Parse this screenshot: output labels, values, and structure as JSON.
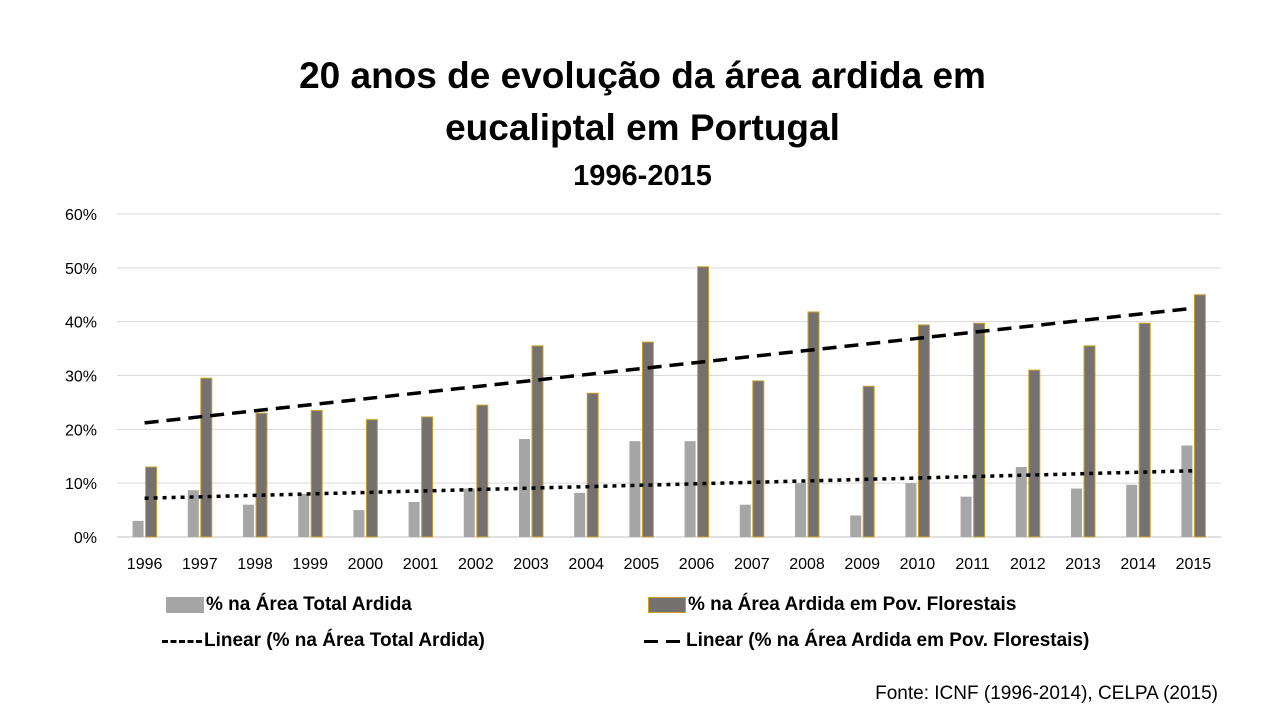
{
  "chart_data": {
    "type": "bar",
    "title": "20 anos de evolução da área ardida em eucaliptal em Portugal",
    "title_lines": [
      "20 anos de evolução da área ardida em",
      "eucaliptal em Portugal"
    ],
    "subtitle": "1996-2015",
    "categories": [
      "1996",
      "1997",
      "1998",
      "1999",
      "2000",
      "2001",
      "2002",
      "2003",
      "2004",
      "2005",
      "2006",
      "2007",
      "2008",
      "2009",
      "2010",
      "2011",
      "2012",
      "2013",
      "2014",
      "2015"
    ],
    "series": [
      {
        "name": "% na Área Total Ardida",
        "color": "#a6a6a6",
        "values": [
          3,
          8.7,
          6,
          8,
          5,
          6.5,
          9,
          18.2,
          8.2,
          17.8,
          17.8,
          6,
          10,
          4,
          10,
          7.5,
          13,
          9,
          9.7,
          17
        ]
      },
      {
        "name": "% na Área Ardida em Pov. Florestais",
        "color": "#767171",
        "border": "#c9a227",
        "values": [
          13,
          29.5,
          23,
          23.5,
          21.8,
          22.3,
          24.5,
          35.5,
          26.7,
          36.2,
          50.2,
          29,
          41.8,
          28,
          39.4,
          39.7,
          31,
          35.5,
          39.7,
          45
        ]
      }
    ],
    "trendlines": [
      {
        "name": "Linear (% na Área Total Ardida)",
        "style": "dotted",
        "start": 7.2,
        "end": 12.3
      },
      {
        "name": "Linear (% na Área Ardida em Pov. Florestais)",
        "style": "dashed",
        "start": 21.2,
        "end": 42.5
      }
    ],
    "yticks": [
      "0%",
      "10%",
      "20%",
      "30%",
      "40%",
      "50%",
      "60%"
    ],
    "ylim": [
      0,
      60
    ],
    "grid": true,
    "legend_position": "bottom",
    "source": "Fonte: ICNF (1996-2014), CELPA (2015)"
  }
}
